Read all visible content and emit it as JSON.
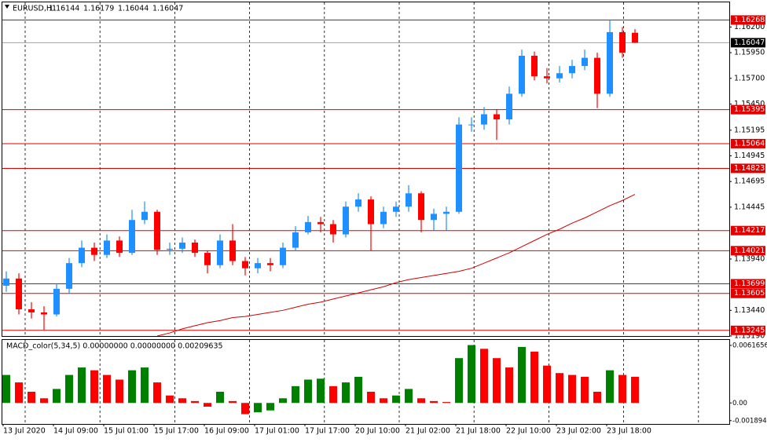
{
  "chart_data": {
    "type": "candlestick",
    "symbol": "EURUSD,H1",
    "header_values": [
      1.16144,
      1.16179,
      1.16044,
      1.16047
    ],
    "open": [
      1.1368,
      1.1375,
      1.1345,
      1.1342,
      1.134,
      1.1365,
      1.139,
      1.1405,
      1.1398,
      1.1412,
      1.14,
      1.1432,
      1.144,
      1.1403,
      1.1404,
      1.141,
      1.14,
      1.1388,
      1.1412,
      1.1392,
      1.1385,
      1.139,
      1.1388,
      1.1405,
      1.142,
      1.143,
      1.1428,
      1.1418,
      1.1445,
      1.1452,
      1.1428,
      1.144,
      1.1445,
      1.1458,
      1.1432,
      1.1438,
      1.144,
      1.1525,
      1.1525,
      1.1535,
      1.153,
      1.1555,
      1.1592,
      1.1572,
      1.157,
      1.1575,
      1.1582,
      1.159,
      1.1555,
      1.1615,
      1.16144
    ],
    "high": [
      1.1382,
      1.138,
      1.1352,
      1.1348,
      1.137,
      1.1395,
      1.1412,
      1.141,
      1.1418,
      1.1416,
      1.1442,
      1.145,
      1.1442,
      1.141,
      1.1415,
      1.1413,
      1.1402,
      1.1418,
      1.1428,
      1.1396,
      1.1395,
      1.1395,
      1.141,
      1.1426,
      1.1436,
      1.1435,
      1.1432,
      1.145,
      1.1458,
      1.1455,
      1.1445,
      1.145,
      1.1466,
      1.146,
      1.1443,
      1.1445,
      1.1532,
      1.1532,
      1.1542,
      1.154,
      1.1562,
      1.1598,
      1.1596,
      1.158,
      1.1582,
      1.1588,
      1.1598,
      1.1595,
      1.16268,
      1.162,
      1.16179
    ],
    "low": [
      1.1362,
      1.134,
      1.1336,
      1.1325,
      1.1338,
      1.136,
      1.1386,
      1.1392,
      1.1395,
      1.1396,
      1.1398,
      1.1428,
      1.1398,
      1.1398,
      1.14,
      1.1396,
      1.138,
      1.1385,
      1.1388,
      1.1378,
      1.138,
      1.1382,
      1.1385,
      1.1402,
      1.1418,
      1.142,
      1.141,
      1.1415,
      1.144,
      1.1402,
      1.1424,
      1.1435,
      1.144,
      1.142,
      1.1422,
      1.1422,
      1.1438,
      1.1518,
      1.152,
      1.151,
      1.1525,
      1.1552,
      1.1568,
      1.1565,
      1.1566,
      1.157,
      1.1578,
      1.1541,
      1.1552,
      1.159,
      1.16044
    ],
    "close": [
      1.1375,
      1.1345,
      1.1342,
      1.134,
      1.1365,
      1.139,
      1.1405,
      1.1398,
      1.1412,
      1.14,
      1.1432,
      1.144,
      1.1403,
      1.1404,
      1.141,
      1.14,
      1.1388,
      1.1412,
      1.1392,
      1.1385,
      1.139,
      1.1388,
      1.1405,
      1.142,
      1.143,
      1.1428,
      1.1418,
      1.1445,
      1.1452,
      1.1428,
      1.144,
      1.1445,
      1.1458,
      1.1432,
      1.1438,
      1.144,
      1.1525,
      1.1525,
      1.1535,
      1.153,
      1.1555,
      1.1592,
      1.1572,
      1.157,
      1.1575,
      1.1582,
      1.159,
      1.1555,
      1.1615,
      1.1595,
      1.16047
    ],
    "bull_color": "#1e90ff",
    "bear_color": "#ff0000",
    "ylim": [
      1.1319,
      1.1644
    ],
    "yticks": [
      {
        "value": 1.162,
        "label": "1.16200"
      },
      {
        "value": 1.1595,
        "label": "1.15950"
      },
      {
        "value": 1.157,
        "label": "1.15700"
      },
      {
        "value": 1.1545,
        "label": "1.15450"
      },
      {
        "value": 1.15195,
        "label": "1.15195"
      },
      {
        "value": 1.14945,
        "label": "1.14945"
      },
      {
        "value": 1.14695,
        "label": "1.14695"
      },
      {
        "value": 1.14445,
        "label": "1.14445"
      },
      {
        "value": 1.1394,
        "label": "1.13940"
      },
      {
        "value": 1.1344,
        "label": "1.13440"
      },
      {
        "value": 1.1319,
        "label": "1.13190"
      }
    ],
    "x_labels": [
      "13 Jul 2020",
      "14 Jul 09:00",
      "15 Jul 01:00",
      "15 Jul 17:00",
      "16 Jul 09:00",
      "17 Jul 01:00",
      "17 Jul 17:00",
      "20 Jul 10:00",
      "21 Jul 02:00",
      "21 Jul 18:00",
      "22 Jul 10:00",
      "23 Jul 02:00",
      "23 Jul 18:00"
    ],
    "levels": [
      1.16268,
      1.15395,
      1.15064,
      1.14823,
      1.14217,
      1.14021,
      1.13699,
      1.13605,
      1.13245
    ],
    "level_color": "#e00000",
    "current_price": 1.16047,
    "ma": {
      "color": "#d00000",
      "values": [
        null,
        null,
        null,
        null,
        null,
        null,
        null,
        null,
        null,
        null,
        null,
        null,
        1.1319,
        1.1322,
        1.1326,
        1.1329,
        1.1332,
        1.1334,
        1.1337,
        1.1338,
        1.134,
        1.1342,
        1.1344,
        1.1347,
        1.135,
        1.1352,
        1.1355,
        1.1358,
        1.1361,
        1.1364,
        1.1367,
        1.1371,
        1.1374,
        1.1376,
        1.1378,
        1.138,
        1.1382,
        1.1385,
        1.139,
        1.1395,
        1.14,
        1.1406,
        1.1412,
        1.1418,
        1.1423,
        1.1429,
        1.1434,
        1.144,
        1.1446,
        1.1451,
        1.1457
      ]
    },
    "macd": {
      "title": "MACD_color(5,34,5) 0.00000000 0.00000000 0.00209635",
      "values": [
        0.003,
        0.0022,
        0.0012,
        0.0005,
        0.0015,
        0.003,
        0.0038,
        0.0035,
        0.003,
        0.0025,
        0.0035,
        0.0038,
        0.0022,
        0.0008,
        0.0005,
        0.0002,
        -0.0004,
        0.0012,
        0.0002,
        -0.0012,
        -0.001,
        -0.0008,
        0.0005,
        0.0018,
        0.0025,
        0.0026,
        0.0018,
        0.0022,
        0.0028,
        0.0012,
        0.0005,
        0.0008,
        0.0015,
        0.0005,
        0.0002,
        0.0001,
        0.0048,
        0.0062,
        0.0058,
        0.0048,
        0.0038,
        0.006,
        0.0055,
        0.004,
        0.0032,
        0.003,
        0.0028,
        0.0012,
        0.0035,
        0.003,
        0.0028
      ],
      "up_color": "#008000",
      "down_color": "#ff0000",
      "ylim": [
        -0.00225,
        0.00675
      ],
      "yticks": [
        0.0061656,
        {
          "value": 0,
          "label": "0.00"
        },
        -0.0018948
      ]
    }
  }
}
